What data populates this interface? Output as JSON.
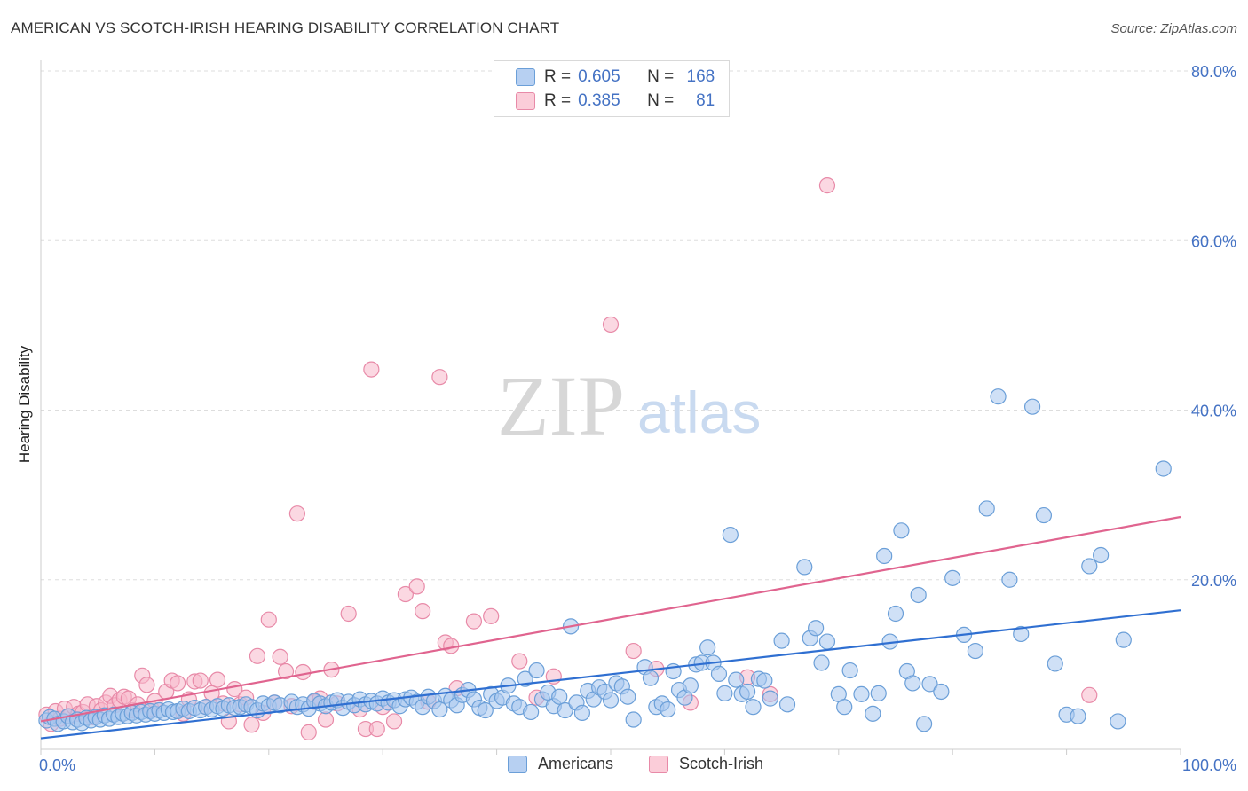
{
  "header": {
    "title": "AMERICAN VS SCOTCH-IRISH HEARING DISABILITY CORRELATION CHART",
    "source": "Source: ZipAtlas.com"
  },
  "watermark": {
    "zip": "ZIP",
    "atlas": "atlas"
  },
  "legend_top": {
    "rows": [
      {
        "r_label": "R =",
        "r_value": "0.605",
        "n_label": "N =",
        "n_value": "168"
      },
      {
        "r_label": "R =",
        "r_value": "0.385",
        "n_label": "N =",
        "n_value": "81"
      }
    ]
  },
  "legend_bottom": {
    "items": [
      "Americans",
      "Scotch-Irish"
    ]
  },
  "colors": {
    "americans_fill": "#a8c6ee",
    "americans_stroke": "#6b9fd8",
    "americans_line": "#2f6fd1",
    "scotch_fill": "#f7b8cb",
    "scotch_stroke": "#e88aa8",
    "scotch_line": "#e0648f",
    "tick_label": "#4472c4",
    "grid": "#dddddd"
  },
  "chart_data": {
    "type": "scatter",
    "title": "AMERICAN VS SCOTCH-IRISH HEARING DISABILITY CORRELATION CHART",
    "xlabel": "",
    "ylabel": "Hearing Disability",
    "xlim": [
      0,
      100
    ],
    "ylim": [
      0,
      80
    ],
    "x_tick_labels": [
      "0.0%",
      "100.0%"
    ],
    "y_tick_labels": [
      "20.0%",
      "40.0%",
      "60.0%",
      "80.0%"
    ],
    "y_ticks": [
      20,
      40,
      60,
      80
    ],
    "grid": true,
    "legend_position": "top-center",
    "series": [
      {
        "name": "Americans",
        "r": 0.605,
        "n": 168,
        "trend": {
          "x": [
            0,
            100
          ],
          "y": [
            1.3,
            16.4
          ]
        },
        "points": [
          [
            0.5,
            3.4
          ],
          [
            0.8,
            3.8
          ],
          [
            1.2,
            3.6
          ],
          [
            1.5,
            3.0
          ],
          [
            2,
            3.3
          ],
          [
            2.4,
            3.9
          ],
          [
            2.8,
            3.2
          ],
          [
            3.2,
            3.5
          ],
          [
            3.6,
            3.1
          ],
          [
            4,
            3.7
          ],
          [
            4.4,
            3.4
          ],
          [
            4.8,
            3.8
          ],
          [
            5.2,
            3.5
          ],
          [
            5.6,
            4.0
          ],
          [
            6,
            3.6
          ],
          [
            6.4,
            4.1
          ],
          [
            6.8,
            3.8
          ],
          [
            7.2,
            4.2
          ],
          [
            7.6,
            3.9
          ],
          [
            8,
            4.3
          ],
          [
            8.4,
            4.0
          ],
          [
            8.8,
            4.4
          ],
          [
            9.2,
            4.1
          ],
          [
            9.6,
            4.5
          ],
          [
            10,
            4.2
          ],
          [
            10.4,
            4.6
          ],
          [
            10.8,
            4.3
          ],
          [
            11.2,
            4.7
          ],
          [
            11.6,
            4.4
          ],
          [
            12,
            4.5
          ],
          [
            12.5,
            4.8
          ],
          [
            13,
            4.5
          ],
          [
            13.5,
            4.9
          ],
          [
            14,
            4.6
          ],
          [
            14.5,
            5.0
          ],
          [
            15,
            4.7
          ],
          [
            15.5,
            5.1
          ],
          [
            16,
            4.8
          ],
          [
            16.5,
            5.2
          ],
          [
            17,
            4.9
          ],
          [
            17.5,
            5.0
          ],
          [
            18,
            5.3
          ],
          [
            18.5,
            5.0
          ],
          [
            19,
            4.6
          ],
          [
            19.5,
            5.4
          ],
          [
            20,
            5.1
          ],
          [
            20.5,
            5.5
          ],
          [
            21,
            5.2
          ],
          [
            22,
            5.6
          ],
          [
            22.5,
            5.0
          ],
          [
            23,
            5.3
          ],
          [
            23.5,
            4.8
          ],
          [
            24,
            5.7
          ],
          [
            24.5,
            5.4
          ],
          [
            25,
            5.1
          ],
          [
            25.5,
            5.5
          ],
          [
            26,
            5.8
          ],
          [
            26.5,
            4.9
          ],
          [
            27,
            5.6
          ],
          [
            27.5,
            5.2
          ],
          [
            28,
            5.9
          ],
          [
            28.5,
            5.3
          ],
          [
            29,
            5.7
          ],
          [
            29.5,
            5.4
          ],
          [
            30,
            6.0
          ],
          [
            30.5,
            5.5
          ],
          [
            31,
            5.8
          ],
          [
            31.5,
            5.1
          ],
          [
            32,
            5.9
          ],
          [
            32.5,
            6.1
          ],
          [
            33,
            5.6
          ],
          [
            33.5,
            5.0
          ],
          [
            34,
            6.2
          ],
          [
            34.5,
            5.7
          ],
          [
            35,
            4.7
          ],
          [
            35.5,
            6.3
          ],
          [
            36,
            5.8
          ],
          [
            36.5,
            5.2
          ],
          [
            37,
            6.4
          ],
          [
            37.5,
            7.0
          ],
          [
            38,
            5.9
          ],
          [
            38.5,
            4.9
          ],
          [
            39,
            4.6
          ],
          [
            39.5,
            6.5
          ],
          [
            40,
            5.7
          ],
          [
            40.5,
            6.1
          ],
          [
            41,
            7.5
          ],
          [
            41.5,
            5.4
          ],
          [
            42,
            5.0
          ],
          [
            42.5,
            8.3
          ],
          [
            43,
            4.4
          ],
          [
            43.5,
            9.3
          ],
          [
            44,
            5.9
          ],
          [
            44.5,
            6.7
          ],
          [
            45,
            5.1
          ],
          [
            45.5,
            6.2
          ],
          [
            46,
            4.6
          ],
          [
            46.5,
            14.5
          ],
          [
            47,
            5.5
          ],
          [
            47.5,
            4.3
          ],
          [
            48,
            6.9
          ],
          [
            48.5,
            5.9
          ],
          [
            49,
            7.3
          ],
          [
            49.5,
            6.8
          ],
          [
            50,
            5.8
          ],
          [
            50.5,
            7.8
          ],
          [
            51,
            7.4
          ],
          [
            51.5,
            6.2
          ],
          [
            52,
            3.5
          ],
          [
            53,
            9.7
          ],
          [
            53.5,
            8.4
          ],
          [
            54,
            5.0
          ],
          [
            54.5,
            5.4
          ],
          [
            55,
            4.7
          ],
          [
            55.5,
            9.2
          ],
          [
            56,
            7.0
          ],
          [
            56.5,
            6.1
          ],
          [
            57,
            7.5
          ],
          [
            57.5,
            10.0
          ],
          [
            58,
            10.2
          ],
          [
            58.5,
            12.0
          ],
          [
            59,
            10.2
          ],
          [
            59.5,
            8.9
          ],
          [
            60,
            6.6
          ],
          [
            60.5,
            25.3
          ],
          [
            61,
            8.2
          ],
          [
            61.5,
            6.5
          ],
          [
            62,
            6.8
          ],
          [
            62.5,
            5.0
          ],
          [
            63,
            8.3
          ],
          [
            63.5,
            8.1
          ],
          [
            64,
            6.0
          ],
          [
            65,
            12.8
          ],
          [
            65.5,
            5.3
          ],
          [
            67,
            21.5
          ],
          [
            67.5,
            13.1
          ],
          [
            68,
            14.3
          ],
          [
            68.5,
            10.2
          ],
          [
            69,
            12.7
          ],
          [
            70,
            6.5
          ],
          [
            70.5,
            5.0
          ],
          [
            71,
            9.3
          ],
          [
            72,
            6.5
          ],
          [
            73,
            4.2
          ],
          [
            73.5,
            6.6
          ],
          [
            74,
            22.8
          ],
          [
            74.5,
            12.7
          ],
          [
            75,
            16.0
          ],
          [
            75.5,
            25.8
          ],
          [
            76,
            9.2
          ],
          [
            76.5,
            7.8
          ],
          [
            77,
            18.2
          ],
          [
            77.5,
            3.0
          ],
          [
            78,
            7.7
          ],
          [
            79,
            6.8
          ],
          [
            80,
            20.2
          ],
          [
            81,
            13.5
          ],
          [
            82,
            11.6
          ],
          [
            83,
            28.4
          ],
          [
            84,
            41.6
          ],
          [
            85,
            20.0
          ],
          [
            86,
            13.6
          ],
          [
            87,
            40.4
          ],
          [
            88,
            27.6
          ],
          [
            89,
            10.1
          ],
          [
            90,
            4.1
          ],
          [
            91,
            3.9
          ],
          [
            92,
            21.6
          ],
          [
            93,
            22.9
          ],
          [
            94.5,
            3.3
          ],
          [
            95,
            12.9
          ],
          [
            98.5,
            33.1
          ]
        ]
      },
      {
        "name": "Scotch-Irish",
        "r": 0.385,
        "n": 81,
        "trend": {
          "x": [
            0,
            100
          ],
          "y": [
            3.3,
            27.4
          ]
        },
        "points": [
          [
            0.5,
            4.1
          ],
          [
            0.9,
            3.0
          ],
          [
            1.3,
            4.5
          ],
          [
            1.7,
            3.6
          ],
          [
            2.1,
            4.8
          ],
          [
            2.5,
            3.9
          ],
          [
            2.9,
            5.0
          ],
          [
            3.3,
            4.2
          ],
          [
            3.7,
            4.4
          ],
          [
            4.1,
            5.3
          ],
          [
            4.5,
            3.8
          ],
          [
            4.9,
            5.1
          ],
          [
            5.3,
            4.6
          ],
          [
            5.7,
            5.5
          ],
          [
            6.1,
            6.3
          ],
          [
            6.5,
            5.2
          ],
          [
            6.9,
            5.8
          ],
          [
            7.3,
            6.2
          ],
          [
            7.7,
            6.0
          ],
          [
            8.1,
            4.6
          ],
          [
            8.5,
            5.3
          ],
          [
            8.9,
            8.7
          ],
          [
            9.3,
            7.6
          ],
          [
            9.7,
            4.8
          ],
          [
            10,
            5.7
          ],
          [
            11,
            6.8
          ],
          [
            11.5,
            8.1
          ],
          [
            12,
            7.8
          ],
          [
            12.5,
            4.2
          ],
          [
            13,
            5.9
          ],
          [
            13.5,
            8.0
          ],
          [
            14,
            8.1
          ],
          [
            14.5,
            5.0
          ],
          [
            15,
            6.6
          ],
          [
            15.5,
            8.2
          ],
          [
            16,
            5.4
          ],
          [
            16.5,
            3.3
          ],
          [
            17,
            7.1
          ],
          [
            17.5,
            5.3
          ],
          [
            18,
            6.1
          ],
          [
            18.5,
            2.9
          ],
          [
            19,
            11.0
          ],
          [
            19.5,
            4.3
          ],
          [
            20,
            15.3
          ],
          [
            20.5,
            5.5
          ],
          [
            21,
            10.9
          ],
          [
            21.5,
            9.2
          ],
          [
            22,
            5.1
          ],
          [
            22.5,
            27.8
          ],
          [
            23,
            9.1
          ],
          [
            23.5,
            2.0
          ],
          [
            24,
            5.6
          ],
          [
            24.5,
            6.0
          ],
          [
            25,
            3.5
          ],
          [
            25.5,
            9.4
          ],
          [
            26,
            5.4
          ],
          [
            27,
            16.0
          ],
          [
            28,
            4.7
          ],
          [
            28.5,
            2.4
          ],
          [
            29,
            44.8
          ],
          [
            29.5,
            2.4
          ],
          [
            30,
            5.0
          ],
          [
            31,
            3.3
          ],
          [
            32,
            18.3
          ],
          [
            33,
            19.2
          ],
          [
            33.5,
            16.3
          ],
          [
            34,
            5.6
          ],
          [
            35,
            43.9
          ],
          [
            35.5,
            12.6
          ],
          [
            36,
            12.2
          ],
          [
            36.5,
            7.2
          ],
          [
            38,
            15.1
          ],
          [
            39.5,
            15.7
          ],
          [
            42,
            10.4
          ],
          [
            43.5,
            6.1
          ],
          [
            45,
            8.6
          ],
          [
            50,
            50.1
          ],
          [
            52,
            11.6
          ],
          [
            54,
            9.5
          ],
          [
            57,
            5.5
          ],
          [
            62,
            8.5
          ],
          [
            64,
            6.5
          ],
          [
            69,
            66.5
          ],
          [
            92,
            6.4
          ]
        ]
      }
    ]
  }
}
